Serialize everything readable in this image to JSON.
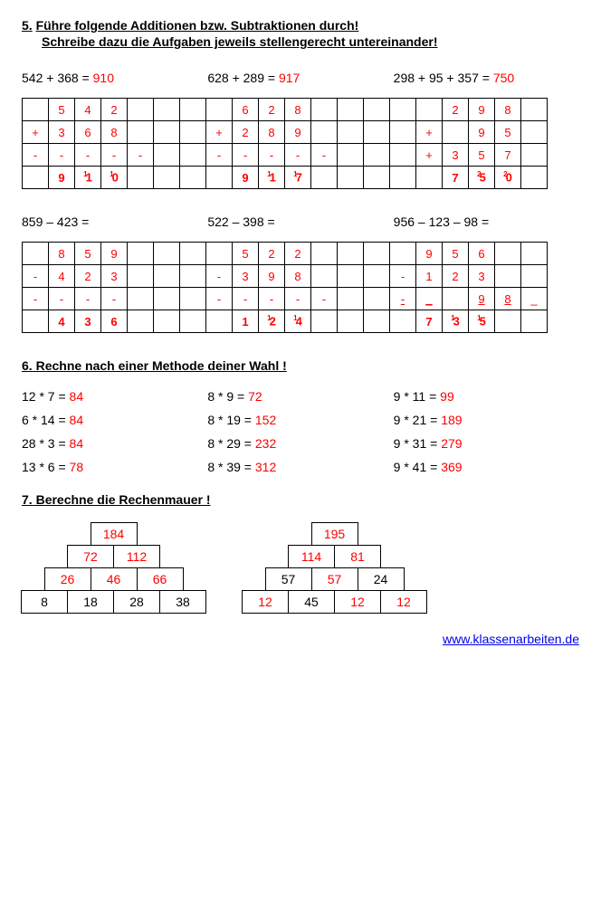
{
  "sec5": {
    "num": "5.",
    "title1": "Führe folgende Additionen bzw. Subtraktionen durch!",
    "title2": "Schreibe dazu die Aufgaben jeweils stellengerecht untereinander!",
    "eq1": {
      "lhs": "542 + 368 =",
      "ans": "910"
    },
    "eq2": {
      "lhs": "628 + 289 =",
      "ans": "917"
    },
    "eq3": {
      "lhs": "298 + 95 + 357 =",
      "ans": "750"
    },
    "grid1": [
      [
        "",
        "5",
        "4",
        "2",
        "",
        "",
        "",
        "",
        "6",
        "2",
        "8",
        "",
        "",
        "",
        "",
        "",
        "2",
        "9",
        "8",
        ""
      ],
      [
        "+",
        "3",
        "6",
        "8",
        "",
        "",
        "",
        "+",
        "2",
        "8",
        "9",
        "",
        "",
        "",
        "",
        "+",
        "",
        "9",
        "5",
        ""
      ],
      [
        "-",
        "-",
        "-",
        "-",
        "-",
        "",
        "",
        "-",
        "-",
        "-",
        "-",
        "-",
        "",
        "",
        "",
        "+",
        "3",
        "5",
        "7",
        ""
      ],
      [
        "",
        "9|b",
        "1|s1|b",
        "0|s1|b",
        "",
        "",
        "",
        "",
        "9|b",
        "1|s1|b",
        "7|s1|b",
        "",
        "",
        "",
        "",
        "",
        "7|b",
        "5|s2|b",
        "0|s2|b",
        ""
      ]
    ],
    "eq4": {
      "lhs": "859 – 423 ="
    },
    "eq5": {
      "lhs": "522 – 398 ="
    },
    "eq6": {
      "lhs": "956 – 123 – 98 ="
    },
    "grid2": [
      [
        "",
        "8",
        "5",
        "9",
        "",
        "",
        "",
        "",
        "5",
        "2",
        "2",
        "",
        "",
        "",
        "",
        "9",
        "5",
        "6",
        "",
        ""
      ],
      [
        "-",
        "4",
        "2",
        "3",
        "",
        "",
        "",
        "-",
        "3",
        "9",
        "8",
        "",
        "",
        "",
        "-",
        "1",
        "2",
        "3",
        "",
        ""
      ],
      [
        "-",
        "-",
        "-",
        "-",
        "",
        "",
        "",
        "-",
        "-",
        "-",
        "-",
        "-",
        "",
        "",
        "-|u",
        "_|u",
        "",
        "9|u",
        "8|u",
        "_"
      ],
      [
        "",
        "4|b",
        "3|b",
        "6|b",
        "",
        "",
        "",
        "",
        "1|b",
        "2|s1|b",
        "4|s1|b",
        "",
        "",
        "",
        "",
        "7|b",
        "3|s1|b",
        "5|s1|b",
        "",
        ""
      ]
    ]
  },
  "sec6": {
    "num": "6.",
    "title": "Rechne nach einer Methode deiner Wahl !",
    "rows": [
      [
        {
          "l": "12 * 7 =",
          "a": "84"
        },
        {
          "l": "8 * 9 =",
          "a": "72"
        },
        {
          "l": "9 * 11 =",
          "a": "99"
        }
      ],
      [
        {
          "l": "6 * 14 =",
          "a": "84"
        },
        {
          "l": "8 * 19 =",
          "a": "152"
        },
        {
          "l": "9 * 21 =",
          "a": "189"
        }
      ],
      [
        {
          "l": "28 * 3 =",
          "a": "84"
        },
        {
          "l": "8 * 29 =",
          "a": "232"
        },
        {
          "l": "9 * 31 =",
          "a": "279"
        }
      ],
      [
        {
          "l": "13 * 6 =",
          "a": "78"
        },
        {
          "l": "8 * 39 =",
          "a": "312"
        },
        {
          "l": "9 * 41 =",
          "a": "369"
        }
      ]
    ]
  },
  "sec7": {
    "num": "7.",
    "title": "Berechne die Rechenmauer !",
    "p1": [
      [
        {
          "v": "184",
          "r": true
        }
      ],
      [
        {
          "v": "72",
          "r": true
        },
        {
          "v": "112",
          "r": true
        }
      ],
      [
        {
          "v": "26",
          "r": true
        },
        {
          "v": "46",
          "r": true
        },
        {
          "v": "66",
          "r": true
        }
      ],
      [
        {
          "v": "8"
        },
        {
          "v": "18"
        },
        {
          "v": "28"
        },
        {
          "v": "38"
        }
      ]
    ],
    "p2": [
      [
        {
          "v": "195",
          "r": true
        }
      ],
      [
        {
          "v": "114",
          "r": true
        },
        {
          "v": "81",
          "r": true
        }
      ],
      [
        {
          "v": "57"
        },
        {
          "v": "57",
          "r": true
        },
        {
          "v": "24"
        }
      ],
      [
        {
          "v": "12",
          "r": true
        },
        {
          "v": "45"
        },
        {
          "v": "12",
          "r": true
        },
        {
          "v": "12",
          "r": true
        }
      ]
    ]
  },
  "footer": {
    "url": "www.klassenarbeiten.de"
  }
}
